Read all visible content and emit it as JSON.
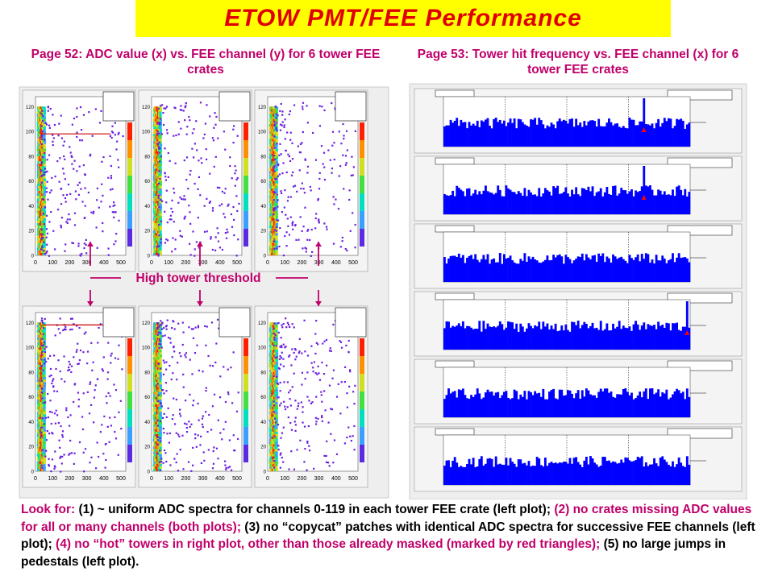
{
  "title": "ETOW  PMT/FEE  Performance",
  "left_caption": "Page 52:  ADC value (x) vs. FEE channel (y) for 6 tower FEE crates",
  "right_caption": "Page 53:  Tower hit frequency vs. FEE channel (x) for 6 tower FEE crates",
  "threshold_label": "High tower threshold",
  "bottom_text": [
    {
      "text": "Look for:",
      "color": "magenta"
    },
    {
      "text": "  (1) ~ uniform ADC spectra for channels 0-119 in each tower FEE crate (left plot);",
      "color": "black"
    },
    {
      "text": "  (2) no crates missing ADC values for all or many channels (both plots);",
      "color": "magenta"
    },
    {
      "text": "  (3) no “copycat” patches with identical ADC spectra for successive FEE channels (left plot);",
      "color": "black"
    },
    {
      "text": "  (4) no “hot” towers in right plot, other than those already masked (marked by red triangles);",
      "color": "magenta"
    },
    {
      "text": "  (5) no large jumps in pedestals (left plot).",
      "color": "black"
    }
  ],
  "colors": {
    "banner": "#ffff00",
    "title": "#e00000",
    "caption": "#c0006a",
    "bar_fill": "#0000ff",
    "scatter": "#6a1ee0",
    "threshold_line": "#cc0000"
  },
  "chart_data": [
    {
      "type": "heatmap",
      "description_of_axes": "ADC value vs FEE channel",
      "panels": 6,
      "x_ticks": [
        "0",
        "100",
        "200",
        "300",
        "400",
        "500"
      ],
      "y_ticks": [
        "0",
        "20",
        "40",
        "60",
        "80",
        "100",
        "120"
      ],
      "xlim": [
        0,
        500
      ],
      "ylim": [
        0,
        128
      ],
      "panel_threshold_channel": [
        98,
        null,
        null,
        118,
        null,
        null
      ]
    },
    {
      "type": "bar",
      "description_of_axes": "Tower hit frequency vs FEE channel",
      "panels": 6,
      "xlim": [
        0,
        120
      ],
      "y_scale": "log",
      "hot_channel_markers": [
        [
          97
        ],
        [
          97
        ],
        [],
        [
          118
        ],
        [],
        []
      ]
    }
  ]
}
